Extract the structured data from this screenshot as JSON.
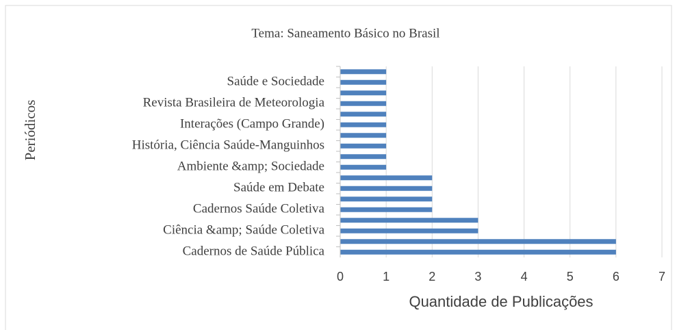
{
  "chart_data": {
    "type": "barh",
    "title": "Tema: Saneamento Básico no Brasil",
    "xlabel": "Quantidade de Publicações",
    "ylabel": "Periódicos",
    "categories": [
      null,
      "Saúde e Sociedade",
      null,
      "Revista Brasileira de Meteorologia",
      null,
      "Interações (Campo Grande)",
      null,
      "História, Ciência Saúde-Manguinhos",
      null,
      "Ambiente &amp; Sociedade",
      null,
      "Saúde em Debate",
      null,
      "Cadernos Saúde Coletiva",
      null,
      "Ciência &amp; Saúde Coletiva",
      null,
      "Cadernos de Saúde Pública"
    ],
    "values": [
      1,
      1,
      1,
      1,
      1,
      1,
      1,
      1,
      1,
      1,
      2,
      2,
      2,
      2,
      3,
      3,
      6,
      6
    ],
    "color": "#4f81bd",
    "xlim": [
      0,
      7
    ],
    "xticks": [
      0,
      1,
      2,
      3,
      4,
      5,
      6,
      7
    ],
    "grid": true
  }
}
